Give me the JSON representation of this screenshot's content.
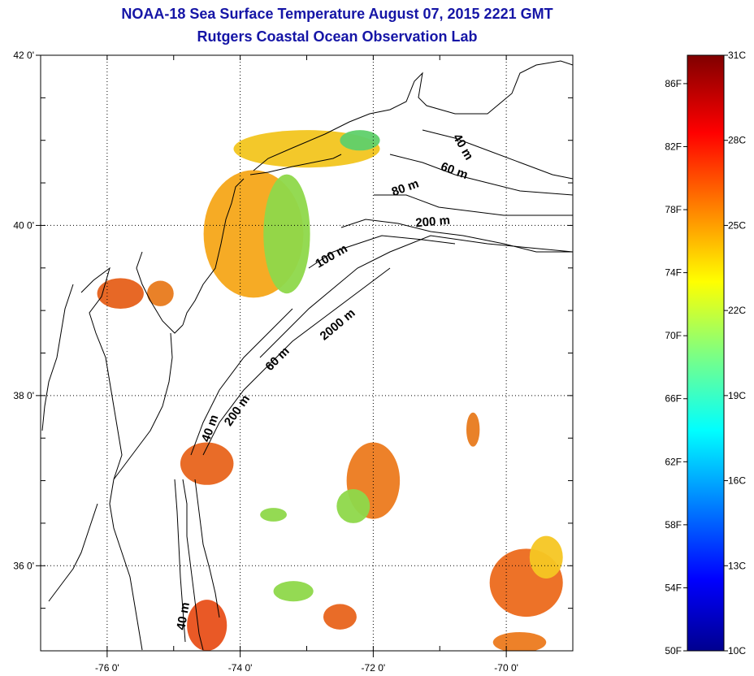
{
  "title": {
    "line1": "NOAA-18 Sea Surface Temperature August 07, 2015 2221 GMT",
    "line2": "Rutgers Coastal Ocean Observation Lab"
  },
  "map": {
    "lon_range": [
      -77.0,
      -69.0
    ],
    "lat_range": [
      35.0,
      42.0
    ],
    "lon_ticks": [
      {
        "value": -76,
        "label": "-76 0'"
      },
      {
        "value": -74,
        "label": "-74 0'"
      },
      {
        "value": -72,
        "label": "-72 0'"
      },
      {
        "value": -70,
        "label": "-70 0'"
      }
    ],
    "lat_ticks": [
      {
        "value": 42,
        "label": "42 0'"
      },
      {
        "value": 40,
        "label": "40 0'"
      },
      {
        "value": 38,
        "label": "38 0'"
      },
      {
        "value": 36,
        "label": "36 0'"
      }
    ],
    "grid": "dotted",
    "contour_labels": [
      {
        "text": "40 m",
        "lon": -70.7,
        "lat": 40.9,
        "angle": 60
      },
      {
        "text": "60 m",
        "lon": -70.8,
        "lat": 40.6,
        "angle": 20
      },
      {
        "text": "80 m",
        "lon": -71.5,
        "lat": 40.4,
        "angle": -20
      },
      {
        "text": "200 m",
        "lon": -71.1,
        "lat": 40.0,
        "angle": -5
      },
      {
        "text": "100 m",
        "lon": -72.6,
        "lat": 39.6,
        "angle": -30
      },
      {
        "text": "2000 m",
        "lon": -72.5,
        "lat": 38.8,
        "angle": -40
      },
      {
        "text": "60 m",
        "lon": -73.4,
        "lat": 38.4,
        "angle": -45
      },
      {
        "text": "200 m",
        "lon": -74.0,
        "lat": 37.8,
        "angle": -55
      },
      {
        "text": "40 m",
        "lon": -74.4,
        "lat": 37.6,
        "angle": -70
      },
      {
        "text": "40 m",
        "lon": -74.8,
        "lat": 35.4,
        "angle": -80
      }
    ],
    "sst_patches": [
      {
        "lon": -73.0,
        "lat": 40.9,
        "rx": 1.1,
        "ry": 0.22,
        "color": "#f2c51f"
      },
      {
        "lon": -72.2,
        "lat": 41.0,
        "rx": 0.3,
        "ry": 0.12,
        "color": "#5fd06a"
      },
      {
        "lon": -73.8,
        "lat": 39.9,
        "rx": 0.75,
        "ry": 0.75,
        "color": "#f5a619"
      },
      {
        "lon": -73.3,
        "lat": 39.9,
        "rx": 0.35,
        "ry": 0.7,
        "color": "#8ed84a"
      },
      {
        "lon": -75.8,
        "lat": 39.2,
        "rx": 0.35,
        "ry": 0.18,
        "color": "#e6601a"
      },
      {
        "lon": -75.2,
        "lat": 39.2,
        "rx": 0.2,
        "ry": 0.15,
        "color": "#e87a1c"
      },
      {
        "lon": -74.5,
        "lat": 37.2,
        "rx": 0.4,
        "ry": 0.25,
        "color": "#e8641c"
      },
      {
        "lon": -72.0,
        "lat": 37.0,
        "rx": 0.4,
        "ry": 0.45,
        "color": "#ec7a1e"
      },
      {
        "lon": -72.3,
        "lat": 36.7,
        "rx": 0.25,
        "ry": 0.2,
        "color": "#8ed84a"
      },
      {
        "lon": -70.5,
        "lat": 37.6,
        "rx": 0.1,
        "ry": 0.2,
        "color": "#e87a1c"
      },
      {
        "lon": -69.7,
        "lat": 35.8,
        "rx": 0.55,
        "ry": 0.4,
        "color": "#ec6a1c"
      },
      {
        "lon": -69.4,
        "lat": 36.1,
        "rx": 0.25,
        "ry": 0.25,
        "color": "#f5c623"
      },
      {
        "lon": -74.5,
        "lat": 35.3,
        "rx": 0.3,
        "ry": 0.3,
        "color": "#e8501a"
      },
      {
        "lon": -72.5,
        "lat": 35.4,
        "rx": 0.25,
        "ry": 0.15,
        "color": "#e8641c"
      },
      {
        "lon": -73.5,
        "lat": 36.6,
        "rx": 0.2,
        "ry": 0.08,
        "color": "#8ed84a"
      },
      {
        "lon": -69.8,
        "lat": 35.1,
        "rx": 0.4,
        "ry": 0.12,
        "color": "#ec7a1e"
      },
      {
        "lon": -73.2,
        "lat": 35.7,
        "rx": 0.3,
        "ry": 0.12,
        "color": "#8ed84a"
      }
    ]
  },
  "colorbar": {
    "min_c": 10,
    "max_c": 31,
    "colormap": "jet",
    "fahrenheit_labels": [
      {
        "value_f": 86,
        "label": "86F"
      },
      {
        "value_f": 82,
        "label": "82F"
      },
      {
        "value_f": 78,
        "label": "78F"
      },
      {
        "value_f": 74,
        "label": "74F"
      },
      {
        "value_f": 70,
        "label": "70F"
      },
      {
        "value_f": 66,
        "label": "66F"
      },
      {
        "value_f": 62,
        "label": "62F"
      },
      {
        "value_f": 58,
        "label": "58F"
      },
      {
        "value_f": 54,
        "label": "54F"
      },
      {
        "value_f": 50,
        "label": "50F"
      }
    ],
    "celsius_labels": [
      {
        "value_c": 31,
        "label": "31C"
      },
      {
        "value_c": 28,
        "label": "28C"
      },
      {
        "value_c": 25,
        "label": "25C"
      },
      {
        "value_c": 22,
        "label": "22C"
      },
      {
        "value_c": 19,
        "label": "19C"
      },
      {
        "value_c": 16,
        "label": "16C"
      },
      {
        "value_c": 13,
        "label": "13C"
      },
      {
        "value_c": 10,
        "label": "10C"
      }
    ]
  }
}
